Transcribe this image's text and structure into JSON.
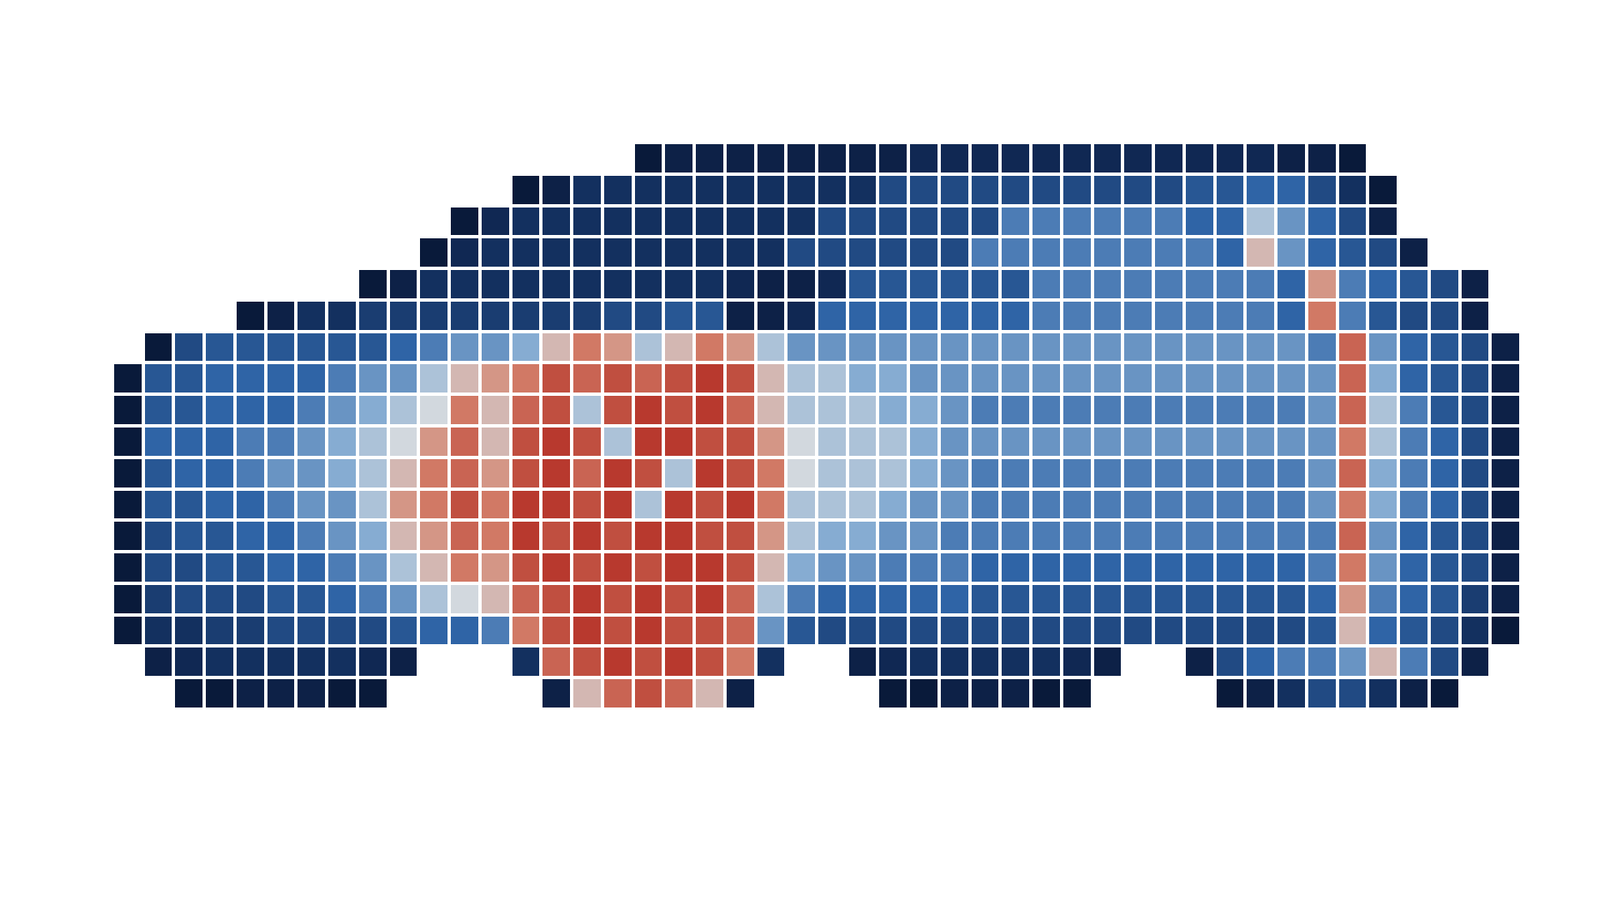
{
  "chart_data": {
    "type": "heatmap",
    "tick_labels": false,
    "zlim": [
      0,
      1
    ],
    "cells": [
      [
        null,
        null,
        null,
        null,
        null,
        null,
        null,
        null,
        null,
        null,
        null,
        null,
        null,
        null,
        null,
        null,
        null,
        0.05,
        0.1,
        0.1,
        0.1,
        0.1,
        0.1,
        0.1,
        0.1,
        0.1,
        0.15,
        0.15,
        0.15,
        0.15,
        0.15,
        0.15,
        0.15,
        0.15,
        0.15,
        0.15,
        0.15,
        0.15,
        0.1,
        0.1,
        0.05,
        null,
        null,
        null,
        null,
        null
      ],
      [
        null,
        null,
        null,
        null,
        null,
        null,
        null,
        null,
        null,
        null,
        null,
        null,
        null,
        0.05,
        0.1,
        0.2,
        0.2,
        0.2,
        0.2,
        0.2,
        0.2,
        0.2,
        0.2,
        0.2,
        0.2,
        0.3,
        0.3,
        0.3,
        0.3,
        0.3,
        0.3,
        0.3,
        0.3,
        0.3,
        0.3,
        0.35,
        0.35,
        0.4,
        0.4,
        0.3,
        0.2,
        0.05,
        null,
        null,
        null,
        null
      ],
      [
        null,
        null,
        null,
        null,
        null,
        null,
        null,
        null,
        null,
        null,
        null,
        0.05,
        0.15,
        0.2,
        0.2,
        0.2,
        0.2,
        0.2,
        0.2,
        0.2,
        0.2,
        0.2,
        0.2,
        0.3,
        0.3,
        0.3,
        0.3,
        0.3,
        0.3,
        0.45,
        0.45,
        0.45,
        0.45,
        0.45,
        0.45,
        0.4,
        0.4,
        0.6,
        0.5,
        0.4,
        0.3,
        0.1,
        null,
        null,
        null,
        null
      ],
      [
        null,
        null,
        null,
        null,
        null,
        null,
        null,
        null,
        null,
        null,
        0.05,
        0.15,
        0.2,
        0.2,
        0.2,
        0.2,
        0.2,
        0.2,
        0.2,
        0.2,
        0.2,
        0.2,
        0.3,
        0.3,
        0.3,
        0.3,
        0.3,
        0.3,
        0.45,
        0.45,
        0.45,
        0.45,
        0.45,
        0.45,
        0.45,
        0.45,
        0.4,
        0.7,
        0.5,
        0.4,
        0.35,
        0.3,
        0.1,
        null,
        null,
        null
      ],
      [
        null,
        null,
        null,
        null,
        null,
        null,
        null,
        null,
        0.05,
        0.1,
        0.2,
        0.2,
        0.2,
        0.2,
        0.2,
        0.2,
        0.2,
        0.2,
        0.2,
        0.2,
        0.15,
        0.1,
        0.1,
        0.15,
        0.35,
        0.35,
        0.35,
        0.35,
        0.35,
        0.35,
        0.45,
        0.45,
        0.45,
        0.45,
        0.45,
        0.45,
        0.45,
        0.45,
        0.4,
        0.75,
        0.45,
        0.4,
        0.35,
        0.3,
        0.1,
        null
      ],
      [
        null,
        null,
        null,
        null,
        0.05,
        0.1,
        0.2,
        0.2,
        0.25,
        0.25,
        0.25,
        0.25,
        0.25,
        0.25,
        0.25,
        0.25,
        0.3,
        0.3,
        0.35,
        0.35,
        0.1,
        0.1,
        0.15,
        0.4,
        0.4,
        0.4,
        0.4,
        0.4,
        0.4,
        0.4,
        0.45,
        0.45,
        0.45,
        0.45,
        0.45,
        0.45,
        0.45,
        0.45,
        0.4,
        0.8,
        0.45,
        0.35,
        0.3,
        0.3,
        0.1,
        null
      ],
      [
        null,
        0.05,
        0.3,
        0.35,
        0.35,
        0.35,
        0.35,
        0.35,
        0.35,
        0.4,
        0.45,
        0.5,
        0.5,
        0.55,
        0.7,
        0.8,
        0.75,
        0.6,
        0.7,
        0.8,
        0.75,
        0.6,
        0.5,
        0.5,
        0.5,
        0.5,
        0.5,
        0.5,
        0.5,
        0.5,
        0.5,
        0.5,
        0.5,
        0.5,
        0.5,
        0.5,
        0.5,
        0.5,
        0.5,
        0.45,
        0.85,
        0.5,
        0.4,
        0.35,
        0.3,
        0.1
      ],
      [
        0.05,
        0.35,
        0.35,
        0.4,
        0.4,
        0.4,
        0.4,
        0.45,
        0.5,
        0.5,
        0.6,
        0.7,
        0.75,
        0.8,
        0.9,
        0.85,
        0.9,
        0.85,
        0.9,
        0.95,
        0.9,
        0.7,
        0.6,
        0.6,
        0.55,
        0.55,
        0.5,
        0.5,
        0.5,
        0.5,
        0.5,
        0.5,
        0.5,
        0.5,
        0.5,
        0.5,
        0.5,
        0.5,
        0.5,
        0.5,
        0.85,
        0.55,
        0.4,
        0.35,
        0.3,
        0.1
      ],
      [
        0.05,
        0.35,
        0.35,
        0.4,
        0.4,
        0.4,
        0.45,
        0.5,
        0.55,
        0.6,
        0.65,
        0.8,
        0.7,
        0.85,
        0.9,
        0.6,
        0.9,
        0.95,
        0.9,
        0.95,
        0.85,
        0.7,
        0.6,
        0.6,
        0.6,
        0.55,
        0.55,
        0.5,
        0.45,
        0.45,
        0.45,
        0.45,
        0.45,
        0.45,
        0.45,
        0.45,
        0.45,
        0.45,
        0.45,
        0.5,
        0.85,
        0.6,
        0.45,
        0.35,
        0.3,
        0.1
      ],
      [
        0.05,
        0.4,
        0.4,
        0.4,
        0.45,
        0.45,
        0.5,
        0.55,
        0.6,
        0.65,
        0.75,
        0.85,
        0.7,
        0.9,
        0.95,
        0.9,
        0.6,
        0.95,
        0.95,
        0.9,
        0.9,
        0.75,
        0.65,
        0.6,
        0.6,
        0.6,
        0.55,
        0.5,
        0.5,
        0.5,
        0.5,
        0.5,
        0.5,
        0.5,
        0.5,
        0.5,
        0.5,
        0.5,
        0.5,
        0.5,
        0.8,
        0.6,
        0.45,
        0.4,
        0.3,
        0.1
      ],
      [
        0.05,
        0.35,
        0.4,
        0.4,
        0.45,
        0.5,
        0.5,
        0.55,
        0.6,
        0.7,
        0.8,
        0.85,
        0.75,
        0.9,
        0.95,
        0.85,
        0.95,
        0.9,
        0.6,
        0.95,
        0.9,
        0.8,
        0.65,
        0.6,
        0.6,
        0.6,
        0.55,
        0.5,
        0.45,
        0.45,
        0.45,
        0.45,
        0.45,
        0.45,
        0.45,
        0.45,
        0.45,
        0.45,
        0.45,
        0.5,
        0.85,
        0.55,
        0.45,
        0.4,
        0.3,
        0.1
      ],
      [
        0.05,
        0.35,
        0.35,
        0.4,
        0.4,
        0.45,
        0.5,
        0.5,
        0.6,
        0.75,
        0.8,
        0.9,
        0.8,
        0.95,
        0.95,
        0.9,
        0.95,
        0.6,
        0.95,
        0.9,
        0.95,
        0.8,
        0.6,
        0.6,
        0.6,
        0.55,
        0.5,
        0.5,
        0.45,
        0.45,
        0.45,
        0.45,
        0.45,
        0.45,
        0.45,
        0.45,
        0.45,
        0.45,
        0.45,
        0.5,
        0.8,
        0.55,
        0.45,
        0.4,
        0.3,
        0.1
      ],
      [
        0.05,
        0.3,
        0.35,
        0.35,
        0.4,
        0.4,
        0.45,
        0.5,
        0.55,
        0.7,
        0.75,
        0.85,
        0.8,
        0.95,
        0.9,
        0.95,
        0.9,
        0.95,
        0.95,
        0.9,
        0.9,
        0.75,
        0.6,
        0.55,
        0.55,
        0.5,
        0.5,
        0.45,
        0.45,
        0.45,
        0.45,
        0.45,
        0.45,
        0.45,
        0.45,
        0.45,
        0.45,
        0.45,
        0.45,
        0.45,
        0.85,
        0.5,
        0.4,
        0.35,
        0.3,
        0.1
      ],
      [
        0.05,
        0.3,
        0.3,
        0.35,
        0.35,
        0.4,
        0.4,
        0.45,
        0.5,
        0.6,
        0.7,
        0.8,
        0.75,
        0.9,
        0.95,
        0.9,
        0.95,
        0.9,
        0.95,
        0.95,
        0.9,
        0.7,
        0.55,
        0.5,
        0.5,
        0.45,
        0.45,
        0.45,
        0.4,
        0.4,
        0.4,
        0.4,
        0.4,
        0.4,
        0.4,
        0.4,
        0.4,
        0.4,
        0.4,
        0.45,
        0.8,
        0.5,
        0.4,
        0.35,
        0.3,
        0.1
      ],
      [
        0.05,
        0.25,
        0.3,
        0.3,
        0.3,
        0.35,
        0.35,
        0.4,
        0.45,
        0.5,
        0.6,
        0.65,
        0.7,
        0.85,
        0.9,
        0.95,
        0.9,
        0.95,
        0.9,
        0.95,
        0.85,
        0.6,
        0.45,
        0.4,
        0.4,
        0.4,
        0.4,
        0.4,
        0.35,
        0.35,
        0.35,
        0.35,
        0.35,
        0.35,
        0.35,
        0.35,
        0.35,
        0.35,
        0.35,
        0.4,
        0.75,
        0.45,
        0.4,
        0.35,
        0.25,
        0.1
      ],
      [
        0.05,
        0.2,
        0.2,
        0.25,
        0.25,
        0.3,
        0.3,
        0.3,
        0.3,
        0.35,
        0.4,
        0.4,
        0.45,
        0.8,
        0.9,
        0.95,
        0.9,
        0.95,
        0.9,
        0.9,
        0.85,
        0.5,
        0.35,
        0.3,
        0.3,
        0.3,
        0.3,
        0.3,
        0.3,
        0.3,
        0.3,
        0.3,
        0.3,
        0.3,
        0.3,
        0.3,
        0.3,
        0.3,
        0.3,
        0.35,
        0.7,
        0.4,
        0.35,
        0.3,
        0.2,
        0.05
      ],
      [
        null,
        0.1,
        0.15,
        0.2,
        0.2,
        0.2,
        0.2,
        0.2,
        0.15,
        0.1,
        null,
        null,
        null,
        0.2,
        0.85,
        0.9,
        0.95,
        0.9,
        0.95,
        0.9,
        0.8,
        0.2,
        null,
        null,
        0.1,
        0.15,
        0.2,
        0.2,
        0.2,
        0.2,
        0.2,
        0.15,
        0.1,
        null,
        null,
        0.1,
        0.3,
        0.4,
        0.45,
        0.45,
        0.5,
        0.7,
        0.45,
        0.3,
        0.1,
        null
      ],
      [
        null,
        null,
        0.05,
        0.05,
        0.1,
        0.1,
        0.1,
        0.05,
        0.05,
        null,
        null,
        null,
        null,
        null,
        0.1,
        0.7,
        0.85,
        0.9,
        0.85,
        0.7,
        0.1,
        null,
        null,
        null,
        null,
        0.05,
        0.05,
        0.1,
        0.1,
        0.1,
        0.05,
        0.05,
        null,
        null,
        null,
        null,
        0.05,
        0.1,
        0.2,
        0.3,
        0.3,
        0.2,
        0.1,
        0.05,
        null,
        null
      ]
    ]
  }
}
